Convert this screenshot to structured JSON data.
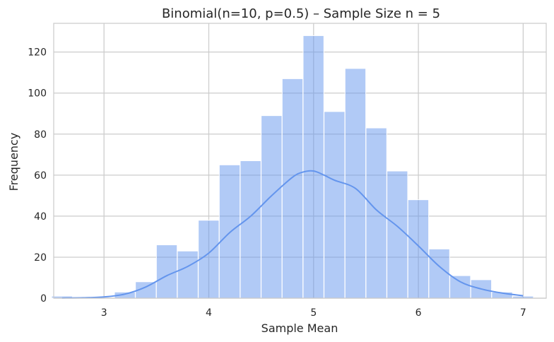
{
  "chart_data": {
    "type": "bar",
    "title": "Binomial(n=10, p=0.5) – Sample Size n = 5",
    "xlabel": "Sample Mean",
    "ylabel": "Frequency",
    "xlim": [
      2.52,
      7.22
    ],
    "ylim": [
      0,
      134
    ],
    "grid": true,
    "x_ticks": [
      3,
      4,
      5,
      6,
      7
    ],
    "y_ticks": [
      0,
      20,
      40,
      60,
      80,
      100,
      120
    ],
    "bar_color": "#6495ed",
    "kde_color": "#6495ed",
    "bars": [
      {
        "x": 2.6,
        "value": 1
      },
      {
        "x": 2.8,
        "value": 0
      },
      {
        "x": 3.0,
        "value": 0
      },
      {
        "x": 3.2,
        "value": 3
      },
      {
        "x": 3.4,
        "value": 8
      },
      {
        "x": 3.6,
        "value": 26
      },
      {
        "x": 3.8,
        "value": 23
      },
      {
        "x": 4.0,
        "value": 38
      },
      {
        "x": 4.2,
        "value": 65
      },
      {
        "x": 4.4,
        "value": 67
      },
      {
        "x": 4.6,
        "value": 89
      },
      {
        "x": 4.8,
        "value": 107
      },
      {
        "x": 5.0,
        "value": 128
      },
      {
        "x": 5.2,
        "value": 91
      },
      {
        "x": 5.4,
        "value": 112
      },
      {
        "x": 5.6,
        "value": 83
      },
      {
        "x": 5.8,
        "value": 62
      },
      {
        "x": 6.0,
        "value": 48
      },
      {
        "x": 6.2,
        "value": 24
      },
      {
        "x": 6.4,
        "value": 11
      },
      {
        "x": 6.6,
        "value": 9
      },
      {
        "x": 6.8,
        "value": 3
      },
      {
        "x": 7.0,
        "value": 1
      }
    ],
    "kde": {
      "x": [
        2.6,
        2.8,
        3.0,
        3.2,
        3.4,
        3.6,
        3.8,
        4.0,
        4.2,
        4.4,
        4.6,
        4.8,
        4.9,
        5.0,
        5.1,
        5.2,
        5.4,
        5.6,
        5.8,
        6.0,
        6.2,
        6.4,
        6.6,
        6.8,
        7.0
      ],
      "y": [
        0.1,
        0.2,
        0.6,
        2.0,
        5.5,
        11.0,
        15.5,
        22.0,
        32.0,
        40.0,
        50.0,
        59.0,
        61.5,
        62.0,
        60.0,
        57.5,
        53.5,
        43.0,
        35.0,
        25.5,
        15.5,
        8.0,
        4.5,
        2.5,
        1.2
      ]
    }
  }
}
